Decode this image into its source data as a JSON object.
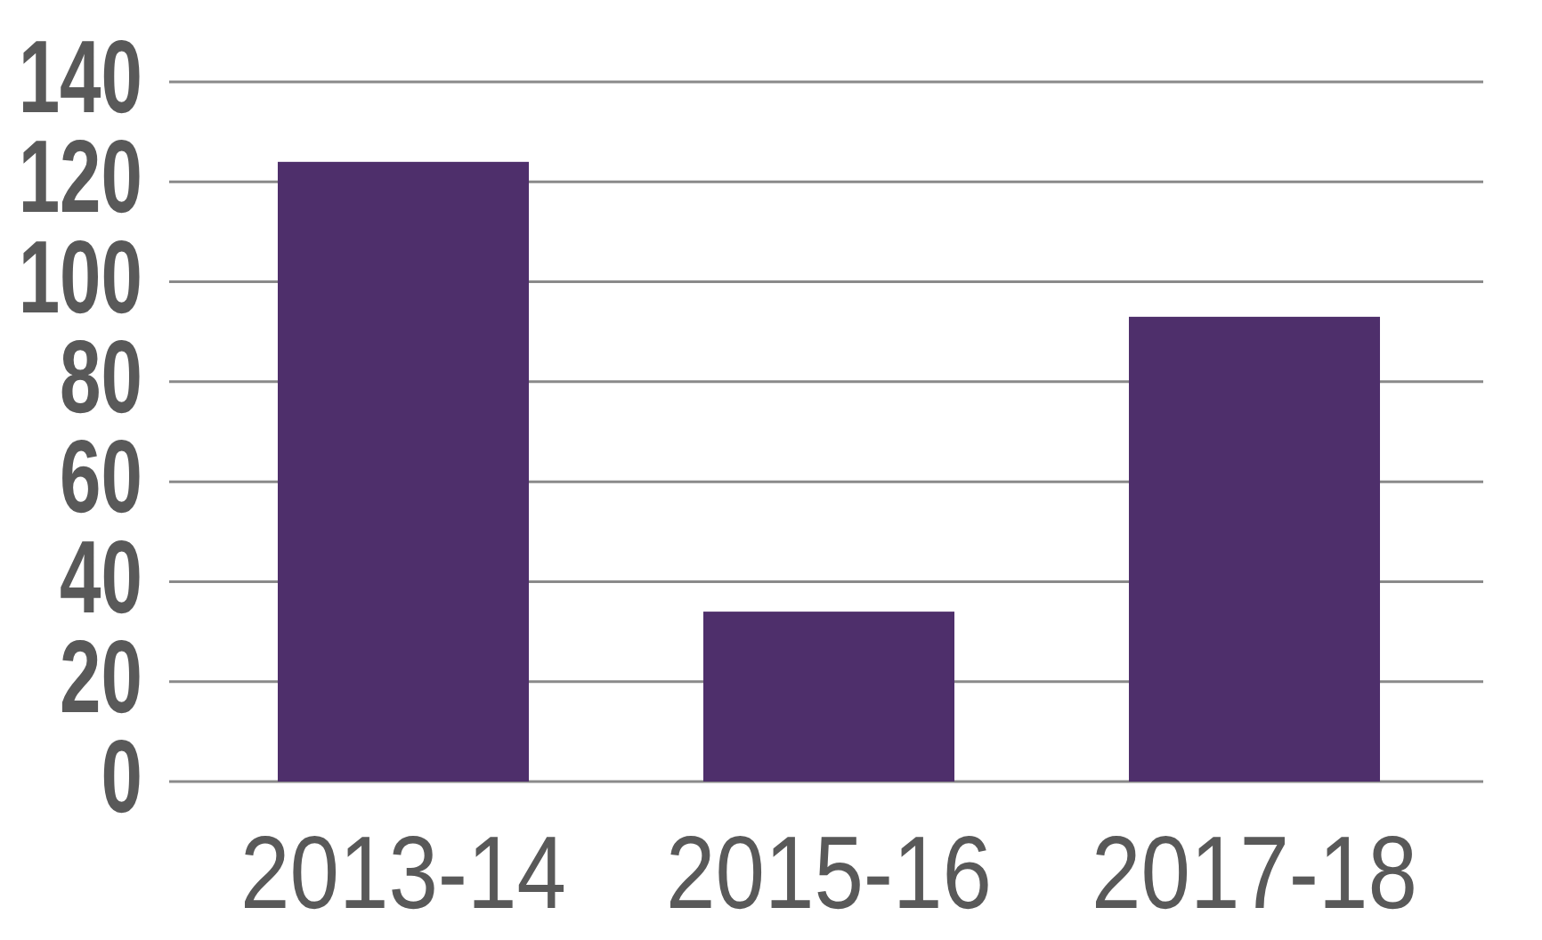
{
  "chart_data": {
    "type": "bar",
    "categories": [
      "2013-14",
      "2015-16",
      "2017-18"
    ],
    "values": [
      124,
      34,
      93
    ],
    "color": "#4e2f6b",
    "ylim": [
      0,
      140
    ],
    "yticks": [
      0,
      20,
      40,
      60,
      80,
      100,
      120,
      140
    ],
    "grid": "y"
  }
}
